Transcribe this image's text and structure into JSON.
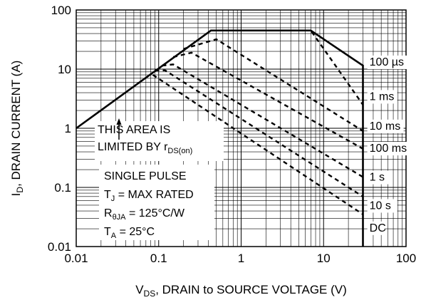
{
  "chart_data": {
    "type": "line",
    "title": "",
    "xlabel": {
      "main": "V",
      "sub": "DS",
      "rest": ", DRAIN to SOURCE VOLTAGE (V)"
    },
    "ylabel": {
      "main": "I",
      "sub": "D",
      "rest": ", DRAIN CURRENT (A)"
    },
    "xscale": "log",
    "yscale": "log",
    "xlim": [
      0.01,
      100
    ],
    "ylim": [
      0.01,
      100
    ],
    "grid": true,
    "x_ticks": [
      {
        "value": 0.01,
        "label": "0.01"
      },
      {
        "value": 0.1,
        "label": "0.1"
      },
      {
        "value": 1,
        "label": "1"
      },
      {
        "value": 10,
        "label": "10"
      },
      {
        "value": 100,
        "label": "100"
      }
    ],
    "y_ticks": [
      {
        "value": 0.01,
        "label": "0.01"
      },
      {
        "value": 0.1,
        "label": "0.1"
      },
      {
        "value": 1,
        "label": "1"
      },
      {
        "value": 10,
        "label": "10"
      },
      {
        "value": 100,
        "label": "100"
      }
    ],
    "series": [
      {
        "name": "100 µs",
        "style": "solid",
        "points": [
          [
            0.01,
            1
          ],
          [
            0.43,
            45
          ],
          [
            7,
            45
          ],
          [
            30,
            11.5
          ],
          [
            30,
            0.01
          ]
        ]
      },
      {
        "name": "1 ms",
        "style": "dashed",
        "points": [
          [
            0.53,
            45
          ],
          [
            7,
            45
          ],
          [
            30,
            2.5
          ]
        ]
      },
      {
        "name": "10 ms",
        "style": "dashed",
        "points": [
          [
            0.2,
            22
          ],
          [
            0.5,
            32
          ],
          [
            30,
            0.9
          ]
        ]
      },
      {
        "name": "100 ms",
        "style": "dashed",
        "points": [
          [
            0.15,
            16
          ],
          [
            0.25,
            19
          ],
          [
            30,
            0.45
          ]
        ]
      },
      {
        "name": "1 s",
        "style": "dashed",
        "points": [
          [
            0.11,
            11.5
          ],
          [
            0.15,
            12
          ],
          [
            30,
            0.15
          ]
        ]
      },
      {
        "name": "10 s",
        "style": "dashed",
        "points": [
          [
            0.09,
            9.5
          ],
          [
            0.12,
            9.5
          ],
          [
            30,
            0.07
          ]
        ]
      },
      {
        "name": "DC",
        "style": "dashed",
        "points": [
          [
            0.085,
            8
          ],
          [
            30,
            0.035
          ]
        ]
      }
    ],
    "series_labels": [
      {
        "series": "100 µs",
        "text": "100 µs",
        "x": 36,
        "y": 11.5
      },
      {
        "series": "1 ms",
        "text": "1 ms",
        "x": 36,
        "y": 3.0
      },
      {
        "series": "10 ms",
        "text": "10 ms",
        "x": 36,
        "y": 0.95
      },
      {
        "series": "100 ms",
        "text": "100 ms",
        "x": 36,
        "y": 0.4
      },
      {
        "series": "1 s",
        "text": "1 s",
        "x": 36,
        "y": 0.13
      },
      {
        "series": "10 s",
        "text": "10 s",
        "x": 36,
        "y": 0.043
      },
      {
        "series": "DC",
        "text": "DC",
        "x": 36,
        "y": 0.018
      }
    ],
    "annotations": {
      "limited_area": [
        [
          {
            "t": "THIS AREA IS"
          }
        ],
        [
          {
            "t": "LIMITED BY r"
          },
          {
            "t": "DS(on)",
            "sub": true
          }
        ]
      ],
      "conditions": [
        [
          {
            "t": "SINGLE PULSE"
          }
        ],
        [
          {
            "t": "T"
          },
          {
            "t": "J",
            "sub": true
          },
          {
            "t": " = MAX RATED"
          }
        ],
        [
          {
            "t": "R"
          },
          {
            "t": "θJA",
            "sub": true
          },
          {
            "t": " = 125°C/W"
          }
        ],
        [
          {
            "t": "T"
          },
          {
            "t": "A",
            "sub": true
          },
          {
            "t": " = 25°C"
          }
        ]
      ]
    }
  }
}
